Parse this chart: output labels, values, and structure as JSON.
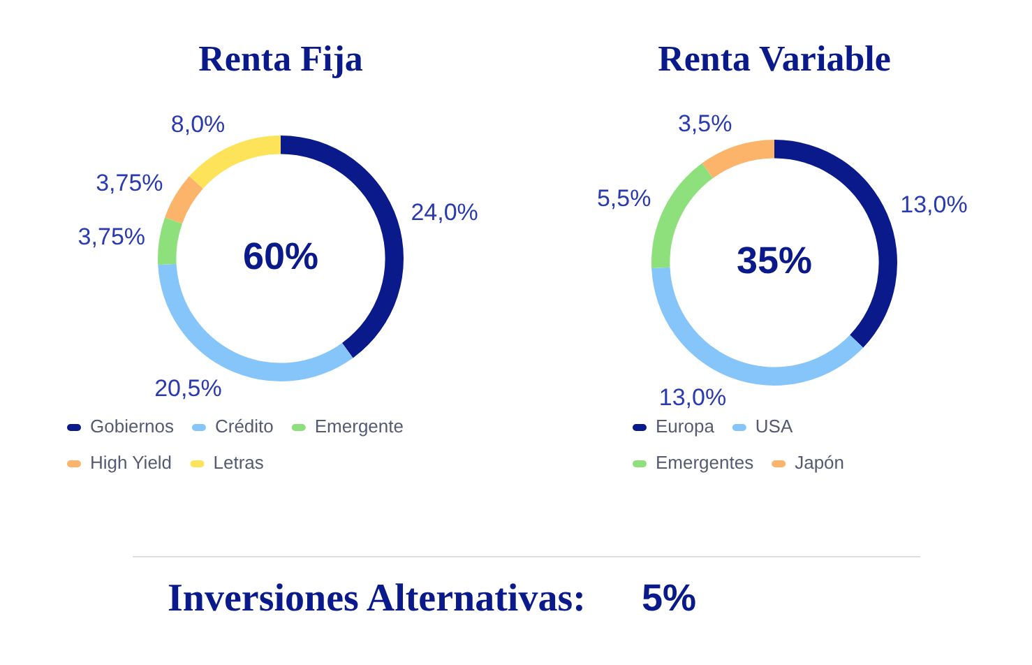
{
  "chart_data": [
    {
      "type": "donut",
      "title": "Renta Fija",
      "categories": [
        "Gobiernos",
        "Crédito",
        "Emergente",
        "High Yield",
        "Letras"
      ],
      "values": [
        24.0,
        20.5,
        3.75,
        3.75,
        8.0
      ],
      "colors": [
        "#0a1a8a",
        "#86c5fa",
        "#8de07b",
        "#fbb46a",
        "#fde35a"
      ],
      "value_labels": [
        "24,0%",
        "20,5%",
        "3,75%",
        "3,75%",
        "8,0%"
      ],
      "annotations": [
        "60%"
      ],
      "legend": "bottom"
    },
    {
      "type": "donut",
      "title": "Renta Variable",
      "categories": [
        "Europa",
        "USA",
        "Emergentes",
        "Japón"
      ],
      "values": [
        13.0,
        13.0,
        5.5,
        3.5
      ],
      "colors": [
        "#0a1a8a",
        "#86c5fa",
        "#8de07b",
        "#fbb46a"
      ],
      "value_labels": [
        "13,0%",
        "13,0%",
        "5,5%",
        "3,5%"
      ],
      "annotations": [
        "35%"
      ],
      "legend": "bottom"
    },
    {
      "type": "other",
      "title": "Inversiones Alternativas:",
      "annotations": [
        "5%"
      ]
    }
  ]
}
